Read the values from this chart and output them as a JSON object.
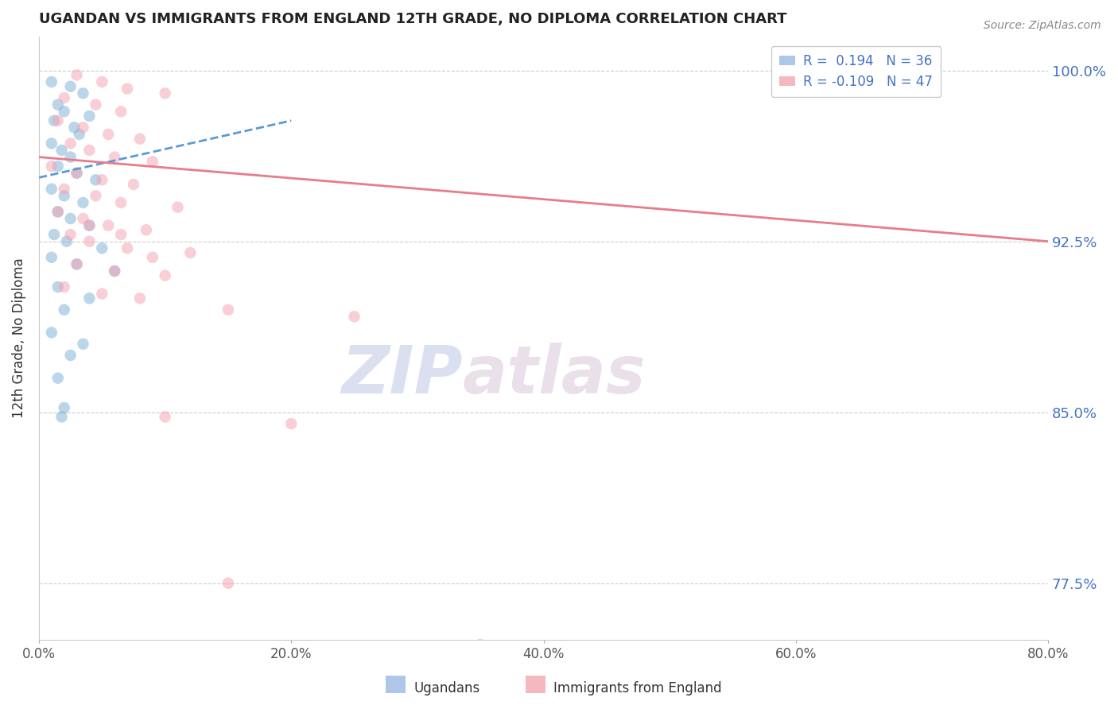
{
  "title": "UGANDAN VS IMMIGRANTS FROM ENGLAND 12TH GRADE, NO DIPLOMA CORRELATION CHART",
  "source": "Source: ZipAtlas.com",
  "ylabel": "12th Grade, No Diploma",
  "xlim": [
    0.0,
    80.0
  ],
  "ylim": [
    75.0,
    101.5
  ],
  "xticks": [
    0.0,
    20.0,
    40.0,
    60.0,
    80.0
  ],
  "xtick_labels": [
    "0.0%",
    "20.0%",
    "40.0%",
    "60.0%",
    "80.0%"
  ],
  "ytick_vals": [
    77.5,
    85.0,
    92.5,
    100.0
  ],
  "ytick_labels": [
    "77.5%",
    "85.0%",
    "92.5%",
    "100.0%"
  ],
  "ugandan_dots": [
    [
      1.0,
      99.5
    ],
    [
      2.5,
      99.3
    ],
    [
      3.5,
      99.0
    ],
    [
      1.5,
      98.5
    ],
    [
      2.0,
      98.2
    ],
    [
      4.0,
      98.0
    ],
    [
      1.2,
      97.8
    ],
    [
      2.8,
      97.5
    ],
    [
      3.2,
      97.2
    ],
    [
      1.0,
      96.8
    ],
    [
      1.8,
      96.5
    ],
    [
      2.5,
      96.2
    ],
    [
      1.5,
      95.8
    ],
    [
      3.0,
      95.5
    ],
    [
      4.5,
      95.2
    ],
    [
      1.0,
      94.8
    ],
    [
      2.0,
      94.5
    ],
    [
      3.5,
      94.2
    ],
    [
      1.5,
      93.8
    ],
    [
      2.5,
      93.5
    ],
    [
      4.0,
      93.2
    ],
    [
      1.2,
      92.8
    ],
    [
      2.2,
      92.5
    ],
    [
      5.0,
      92.2
    ],
    [
      1.0,
      91.8
    ],
    [
      3.0,
      91.5
    ],
    [
      6.0,
      91.2
    ],
    [
      1.5,
      90.5
    ],
    [
      4.0,
      90.0
    ],
    [
      2.0,
      89.5
    ],
    [
      1.0,
      88.5
    ],
    [
      3.5,
      88.0
    ],
    [
      2.5,
      87.5
    ],
    [
      1.5,
      86.5
    ],
    [
      2.0,
      85.2
    ],
    [
      1.8,
      84.8
    ]
  ],
  "england_dots": [
    [
      3.0,
      99.8
    ],
    [
      5.0,
      99.5
    ],
    [
      7.0,
      99.2
    ],
    [
      10.0,
      99.0
    ],
    [
      2.0,
      98.8
    ],
    [
      4.5,
      98.5
    ],
    [
      6.5,
      98.2
    ],
    [
      1.5,
      97.8
    ],
    [
      3.5,
      97.5
    ],
    [
      5.5,
      97.2
    ],
    [
      8.0,
      97.0
    ],
    [
      2.5,
      96.8
    ],
    [
      4.0,
      96.5
    ],
    [
      6.0,
      96.2
    ],
    [
      9.0,
      96.0
    ],
    [
      1.0,
      95.8
    ],
    [
      3.0,
      95.5
    ],
    [
      5.0,
      95.2
    ],
    [
      7.5,
      95.0
    ],
    [
      2.0,
      94.8
    ],
    [
      4.5,
      94.5
    ],
    [
      6.5,
      94.2
    ],
    [
      11.0,
      94.0
    ],
    [
      1.5,
      93.8
    ],
    [
      3.5,
      93.5
    ],
    [
      5.5,
      93.2
    ],
    [
      8.5,
      93.0
    ],
    [
      2.5,
      92.8
    ],
    [
      4.0,
      92.5
    ],
    [
      7.0,
      92.2
    ],
    [
      12.0,
      92.0
    ],
    [
      3.0,
      91.5
    ],
    [
      6.0,
      91.2
    ],
    [
      10.0,
      91.0
    ],
    [
      2.0,
      90.5
    ],
    [
      5.0,
      90.2
    ],
    [
      8.0,
      90.0
    ],
    [
      15.0,
      89.5
    ],
    [
      25.0,
      89.2
    ],
    [
      10.0,
      84.8
    ],
    [
      20.0,
      84.5
    ],
    [
      15.0,
      77.5
    ],
    [
      35.0,
      74.8
    ],
    [
      4.0,
      93.2
    ],
    [
      6.5,
      92.8
    ],
    [
      9.0,
      91.8
    ]
  ],
  "ugandan_color": "#7bafd4",
  "england_color": "#f4a0b0",
  "ugandan_trend_color": "#5b9bd5",
  "england_trend_color": "#e87c8a",
  "dot_size": 110,
  "dot_alpha": 0.5,
  "watermark_zip": "ZIP",
  "watermark_atlas": "atlas",
  "background_color": "#ffffff",
  "grid_color": "#cccccc"
}
